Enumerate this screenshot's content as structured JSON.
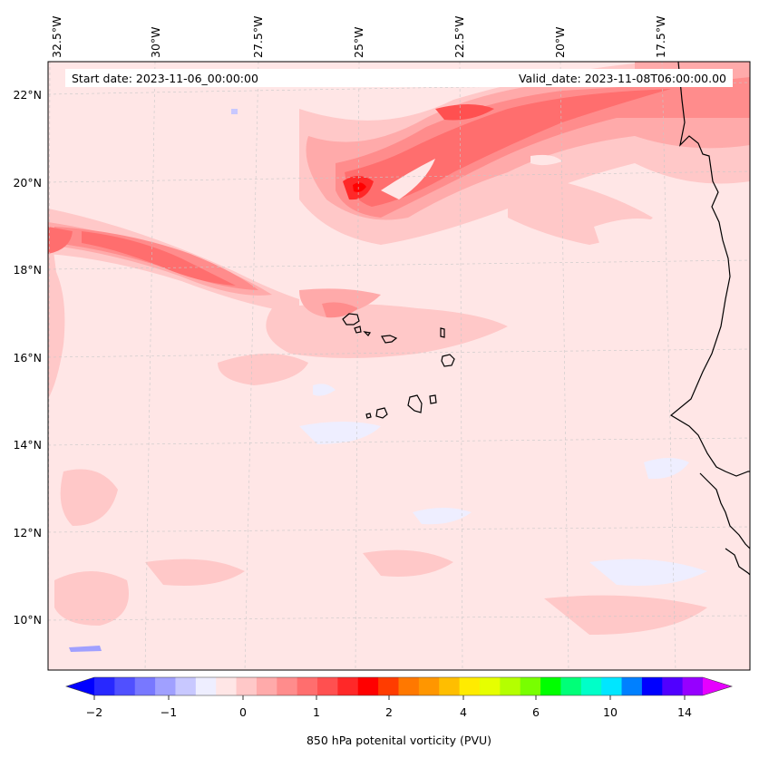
{
  "map": {
    "start_label": "Start date: 2023-11-06_00:00:00",
    "valid_label": "Valid_date: 2023-11-08T06:00:00.00",
    "lon_labels": [
      "32.5°W",
      "30°W",
      "27.5°W",
      "25°W",
      "22.5°W",
      "20°W",
      "17.5°W"
    ],
    "lat_labels": [
      "22°N",
      "20°N",
      "18°N",
      "16°N",
      "14°N",
      "12°N",
      "10°N"
    ],
    "background_color": "#ffe6e6",
    "coastline_color": "#000000"
  },
  "colorbar": {
    "label": "850 hPa potenital vorticity (PVU)",
    "tick_labels": [
      "−2",
      "−1",
      "0",
      "1",
      "2",
      "4",
      "6",
      "10",
      "14"
    ],
    "colors": [
      "#0000ff",
      "#2828ff",
      "#5050ff",
      "#7878ff",
      "#a0a0ff",
      "#c8c8ff",
      "#eeeeff",
      "#ffe6e6",
      "#ffc8c8",
      "#ffaaaa",
      "#ff8c8c",
      "#ff6e6e",
      "#ff5050",
      "#ff2828",
      "#ff0000",
      "#ff3c00",
      "#ff7800",
      "#ff9600",
      "#ffbe00",
      "#ffeb00",
      "#e6ff00",
      "#b4ff00",
      "#78ff00",
      "#00ff00",
      "#00ff78",
      "#00ffc8",
      "#00e6ff",
      "#0080ff",
      "#0000ff",
      "#5000ff",
      "#9600ff",
      "#e600ff"
    ]
  }
}
